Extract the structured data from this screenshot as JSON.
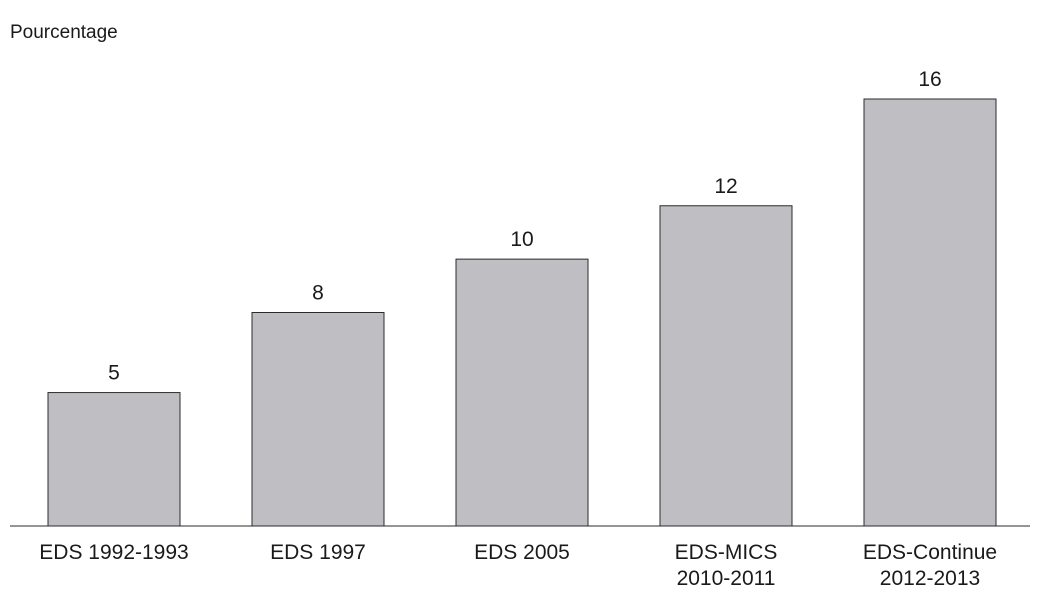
{
  "chart_data": {
    "type": "bar",
    "title": "",
    "xlabel": "",
    "ylabel": "Pourcentage",
    "categories": [
      [
        "EDS 1992-1993"
      ],
      [
        "EDS 1997"
      ],
      [
        "EDS 2005"
      ],
      [
        "EDS-MICS",
        "2010-2011"
      ],
      [
        "EDS-Continue",
        "2012-2013"
      ]
    ],
    "values": [
      5,
      8,
      10,
      12,
      16
    ],
    "ylim": [
      0,
      16
    ],
    "grid": false,
    "legend": "none",
    "colors": {
      "bar_fill": "#bfbfc3",
      "bar_stroke": "#2b2b2b",
      "axis": "#2b2b2b",
      "text": "#1a1a1a"
    }
  }
}
